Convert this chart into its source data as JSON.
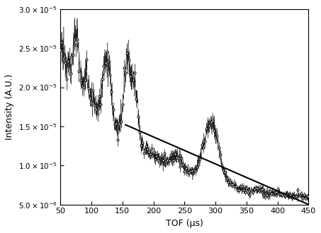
{
  "xlim": [
    50,
    450
  ],
  "ylim": [
    5e-06,
    3e-05
  ],
  "xlabel": "TOF (μs)",
  "ylabel": "Intensity (A.U.)",
  "bg_color": "#ffffff",
  "line_color": "#000000",
  "data_color": "#000000",
  "marker": "o",
  "markersize": 2.2,
  "linewidth_fit": 1.5,
  "seed": 12345,
  "fit_x": [
    155,
    450
  ],
  "fit_y": [
    1.52e-05,
    5e-06
  ],
  "yticks": [
    5e-06,
    1e-05,
    1.5e-05,
    2e-05,
    2.5e-05,
    3e-05
  ],
  "ylabels": [
    "5.0×10⁻⁶",
    "1.0×10⁻⁵",
    "1.5×10⁻⁵",
    "2.0×10⁻⁵",
    "2.5×10⁻⁵",
    "3.0×10⁻⁵"
  ],
  "xticks": [
    50,
    100,
    150,
    200,
    250,
    300,
    350,
    400,
    450
  ]
}
